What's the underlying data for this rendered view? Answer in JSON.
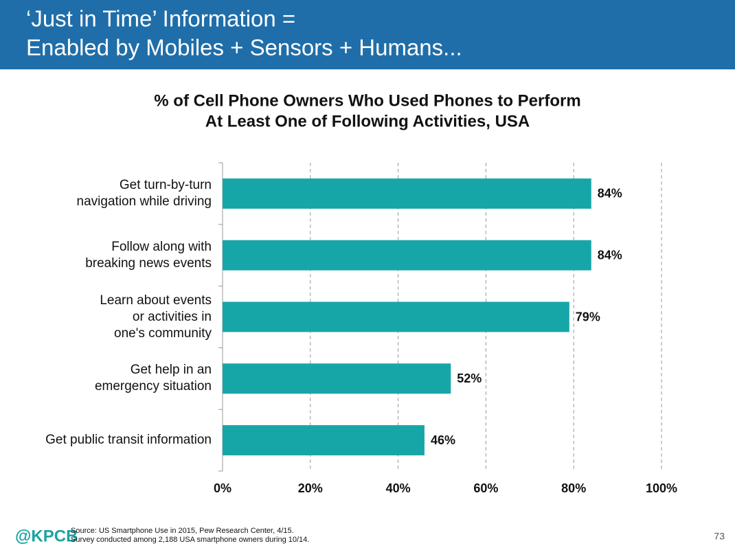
{
  "header": {
    "title_lines": [
      "‘Just in Time’ Information =",
      "Enabled by Mobiles + Sensors + Humans..."
    ]
  },
  "chart_data": {
    "type": "bar",
    "orientation": "horizontal",
    "title_lines": [
      "% of Cell Phone Owners Who Used Phones to Perform",
      "At Least One of Following Activities, USA"
    ],
    "categories": [
      "Get turn-by-turn\nnavigation while driving",
      "Follow along with\nbreaking news events",
      "Learn about events\nor activities in\none's community",
      "Get help in an\nemergency situation",
      "Get public transit information"
    ],
    "values": [
      84,
      84,
      79,
      52,
      46
    ],
    "value_labels": [
      "84%",
      "84%",
      "79%",
      "52%",
      "46%"
    ],
    "color": "#17a6a8",
    "xlim": [
      0,
      100
    ],
    "xticks": [
      {
        "value": 0,
        "label": "0%"
      },
      {
        "value": 20,
        "label": "20%"
      },
      {
        "value": 40,
        "label": "40%"
      },
      {
        "value": 60,
        "label": "60%"
      },
      {
        "value": 80,
        "label": "80%"
      },
      {
        "value": 100,
        "label": "100%"
      }
    ],
    "grid": true
  },
  "footer": {
    "logo": "@KPCB",
    "source_lines": [
      "Source: US Smartphone Use in 2015, Pew Research Center, 4/15.",
      "Survey conducted among 2,188 USA smartphone owners during 10/14."
    ],
    "page_number": "73"
  }
}
